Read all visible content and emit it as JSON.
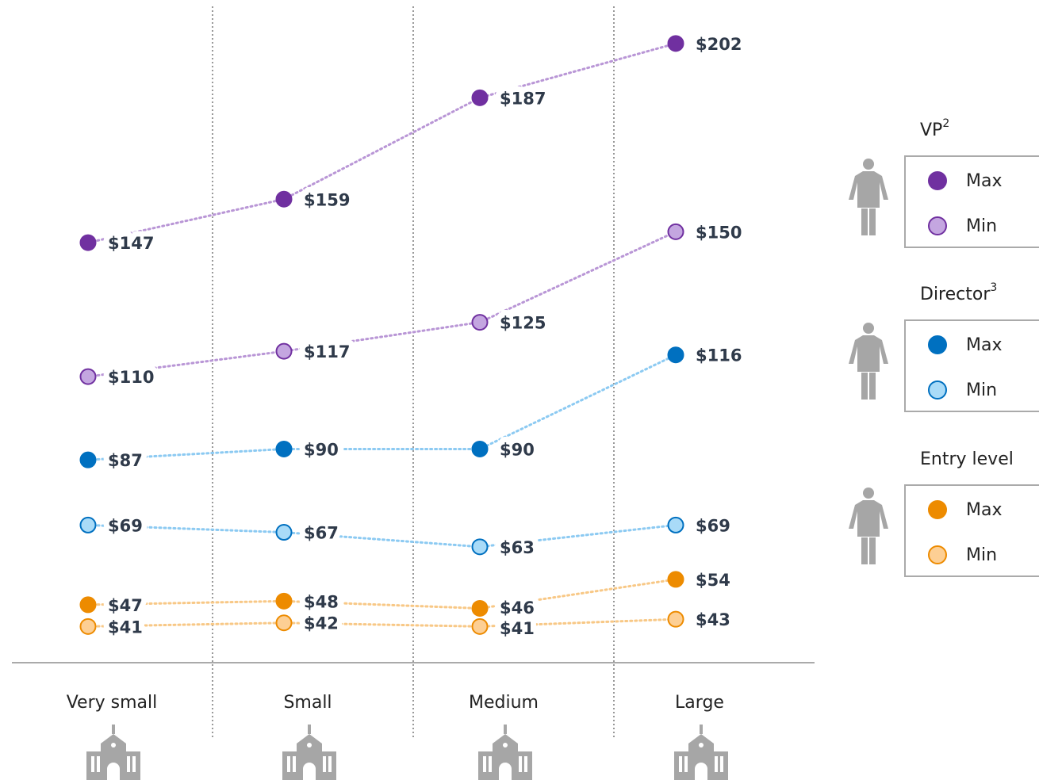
{
  "chart_data": {
    "type": "line",
    "categories": [
      "Very small",
      "Small",
      "Medium",
      "Large"
    ],
    "ylim": [
      31,
      214
    ],
    "groups": [
      {
        "title": "VP",
        "sup": "2"
      },
      {
        "title": "Director",
        "sup": "3"
      },
      {
        "title": "Entry level",
        "sup": null
      }
    ],
    "series": [
      {
        "name": "Max",
        "color": "#7030a0",
        "fill": "#7030a0",
        "line": "#b996d6",
        "values": [
          147,
          159,
          187,
          202
        ],
        "value_labels": [
          "$147",
          "$159",
          "$187",
          "$202"
        ]
      },
      {
        "name": "Min",
        "color": "#7030a0",
        "fill": "#c4a6e0",
        "line": "#b996d6",
        "values": [
          110,
          117,
          125,
          150
        ],
        "value_labels": [
          "$110",
          "$117",
          "$125",
          "$150"
        ]
      },
      {
        "name": "Max",
        "color": "#0070c0",
        "fill": "#0070c0",
        "line": "#8ccaf2",
        "values": [
          87,
          90,
          90,
          116
        ],
        "value_labels": [
          "$87",
          "$90",
          "$90",
          "$116"
        ]
      },
      {
        "name": "Min",
        "color": "#0070c0",
        "fill": "#a9dbf8",
        "line": "#8ccaf2",
        "values": [
          69,
          67,
          63,
          69
        ],
        "value_labels": [
          "$69",
          "$67",
          "$63",
          "$69"
        ]
      },
      {
        "name": "Max",
        "color": "#ed8b00",
        "fill": "#ed8b00",
        "line": "#f8c886",
        "values": [
          47,
          48,
          46,
          54
        ],
        "value_labels": [
          "$47",
          "$48",
          "$46",
          "$54"
        ]
      },
      {
        "name": "Min",
        "color": "#ed8b00",
        "fill": "#fdcf94",
        "line": "#f8c886",
        "values": [
          41,
          42,
          41,
          43
        ],
        "value_labels": [
          "$41",
          "$42",
          "$41",
          "$43"
        ]
      }
    ]
  }
}
